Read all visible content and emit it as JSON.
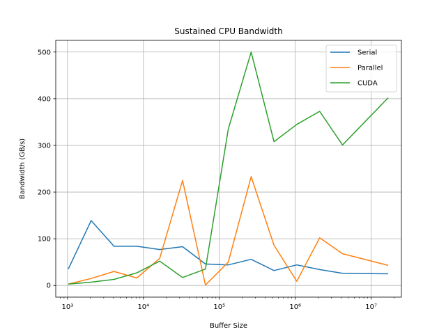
{
  "chart_data": {
    "type": "line",
    "title": "Sustained CPU Bandwidth",
    "xlabel": "Buffer Size",
    "ylabel": "Bandwidth (GB/s)",
    "xscale": "log",
    "xlim": [
      700,
      25000000
    ],
    "ylim": [
      -25,
      525
    ],
    "grid": true,
    "legend_position": "top-right",
    "x": [
      1024,
      2048,
      4096,
      8192,
      16384,
      32768,
      65536,
      131072,
      262144,
      524288,
      1048576,
      2097152,
      4194304,
      16777216
    ],
    "xticks": [
      {
        "value": 1000,
        "label": "10³"
      },
      {
        "value": 10000,
        "label": "10⁴"
      },
      {
        "value": 100000,
        "label": "10⁵"
      },
      {
        "value": 1000000,
        "label": "10⁶"
      },
      {
        "value": 10000000,
        "label": "10⁷"
      }
    ],
    "yticks": [
      0,
      100,
      200,
      300,
      400,
      500
    ],
    "series": [
      {
        "name": "Serial",
        "color": "#1f77b4",
        "values": [
          35,
          139,
          84,
          84,
          77,
          83,
          46,
          44,
          56,
          32,
          44,
          34,
          26,
          25
        ]
      },
      {
        "name": "Parallel",
        "color": "#ff7f0e",
        "values": [
          3,
          15,
          30,
          16,
          58,
          225,
          1,
          50,
          233,
          86,
          9,
          102,
          68,
          43
        ]
      },
      {
        "name": "CUDA",
        "color": "#2ca02c",
        "values": [
          3,
          7,
          13,
          27,
          52,
          17,
          35,
          335,
          500,
          308,
          345,
          373,
          301,
          402
        ]
      }
    ]
  }
}
